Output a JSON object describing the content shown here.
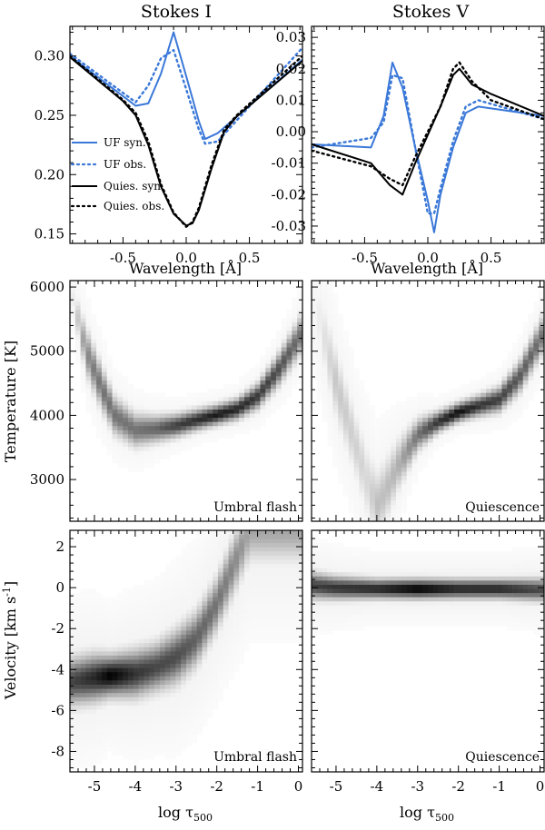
{
  "colors": {
    "uf": "#3a78d8",
    "quies": "#000000"
  },
  "chart_data": [
    {
      "id": "stokesI",
      "type": "line",
      "title": "Stokes I",
      "xlabel": "Wavelength [Å]",
      "ylabel": "",
      "xlim": [
        -0.92,
        0.92
      ],
      "ylim": [
        0.142,
        0.325
      ],
      "xticks": [
        -0.5,
        0.0,
        0.5
      ],
      "xtick_labels": [
        "-0.5",
        "0.0",
        "0.5"
      ],
      "yticks": [
        0.15,
        0.2,
        0.25,
        0.3
      ],
      "ytick_labels": [
        "0.15",
        "0.20",
        "0.25",
        "0.30"
      ],
      "series": [
        {
          "name": "UF syn.",
          "style": "solid",
          "color": "uf",
          "x": [
            -0.92,
            -0.4,
            -0.3,
            -0.2,
            -0.1,
            0.0,
            0.1,
            0.15,
            0.25,
            0.92
          ],
          "y": [
            0.3,
            0.258,
            0.26,
            0.285,
            0.32,
            0.283,
            0.245,
            0.23,
            0.235,
            0.297
          ]
        },
        {
          "name": "UF obs.",
          "style": "dotted",
          "color": "uf",
          "x": [
            -0.92,
            -0.4,
            -0.3,
            -0.2,
            -0.1,
            0.0,
            0.1,
            0.15,
            0.25,
            0.92
          ],
          "y": [
            0.302,
            0.261,
            0.275,
            0.298,
            0.305,
            0.272,
            0.238,
            0.226,
            0.228,
            0.307
          ]
        },
        {
          "name": "Quies. syn",
          "style": "solid",
          "color": "quies",
          "x": [
            -0.92,
            -0.5,
            -0.4,
            -0.3,
            -0.2,
            -0.1,
            0.0,
            0.05,
            0.1,
            0.2,
            0.3,
            0.4,
            0.92
          ],
          "y": [
            0.299,
            0.262,
            0.25,
            0.225,
            0.19,
            0.167,
            0.157,
            0.159,
            0.17,
            0.205,
            0.236,
            0.249,
            0.296
          ]
        },
        {
          "name": "Quies. obs.",
          "style": "dotted",
          "color": "quies",
          "x": [
            -0.92,
            -0.5,
            -0.4,
            -0.3,
            -0.2,
            -0.1,
            0.0,
            0.05,
            0.1,
            0.2,
            0.3,
            0.4,
            0.92
          ],
          "y": [
            0.3,
            0.263,
            0.252,
            0.228,
            0.192,
            0.168,
            0.156,
            0.16,
            0.172,
            0.208,
            0.238,
            0.25,
            0.3
          ]
        }
      ],
      "legend": {
        "position": "left-middle",
        "entries": [
          "UF syn.",
          "UF obs.",
          "Quies. syn",
          "Quies. obs."
        ]
      }
    },
    {
      "id": "stokesV",
      "type": "line",
      "title": "Stokes V",
      "xlabel": "Wavelength [Å]",
      "ylabel": "",
      "xlim": [
        -0.92,
        0.92
      ],
      "ylim": [
        -0.0355,
        0.0335
      ],
      "xticks": [
        -0.5,
        0.0,
        0.5
      ],
      "xtick_labels": [
        "-0.5",
        "0.0",
        "0.5"
      ],
      "yticks": [
        -0.03,
        -0.02,
        -0.01,
        0.0,
        0.01,
        0.02,
        0.03
      ],
      "ytick_labels": [
        "-0.03",
        "-0.02",
        "-0.01",
        "0.00",
        "0.01",
        "0.02",
        "0.03"
      ],
      "series": [
        {
          "name": "UF syn.",
          "style": "solid",
          "color": "uf",
          "x": [
            -0.92,
            -0.45,
            -0.35,
            -0.28,
            -0.2,
            -0.1,
            0.0,
            0.05,
            0.1,
            0.2,
            0.3,
            0.4,
            0.92
          ],
          "y": [
            -0.004,
            -0.005,
            0.005,
            0.022,
            0.014,
            -0.005,
            -0.022,
            -0.032,
            -0.02,
            -0.005,
            0.006,
            0.008,
            0.005
          ]
        },
        {
          "name": "UF obs.",
          "style": "dotted",
          "color": "uf",
          "x": [
            -0.92,
            -0.45,
            -0.35,
            -0.28,
            -0.2,
            -0.1,
            0.0,
            0.05,
            0.1,
            0.2,
            0.3,
            0.4,
            0.92
          ],
          "y": [
            -0.005,
            -0.002,
            0.003,
            0.018,
            0.017,
            -0.005,
            -0.026,
            -0.026,
            -0.018,
            -0.003,
            0.008,
            0.01,
            0.004
          ]
        },
        {
          "name": "Quies. syn",
          "style": "solid",
          "color": "quies",
          "x": [
            -0.92,
            -0.45,
            -0.3,
            -0.2,
            -0.1,
            0.0,
            0.1,
            0.2,
            0.25,
            0.35,
            0.5,
            0.92
          ],
          "y": [
            -0.004,
            -0.01,
            -0.017,
            -0.02,
            -0.01,
            -0.001,
            0.008,
            0.018,
            0.02,
            0.015,
            0.012,
            0.005
          ]
        },
        {
          "name": "Quies. obs.",
          "style": "dotted",
          "color": "quies",
          "x": [
            -0.92,
            -0.45,
            -0.3,
            -0.2,
            -0.1,
            0.0,
            0.1,
            0.2,
            0.25,
            0.35,
            0.5,
            0.92
          ],
          "y": [
            -0.006,
            -0.011,
            -0.015,
            -0.017,
            -0.008,
            0.0,
            0.008,
            0.02,
            0.022,
            0.016,
            0.01,
            0.004
          ]
        }
      ]
    },
    {
      "id": "tempUF",
      "type": "heatmap",
      "label": "Umbral flash",
      "xlabel": "",
      "ylabel": "Temperature [K]",
      "xlim": [
        -5.6,
        0.1
      ],
      "ylim": [
        2350,
        6100
      ],
      "xticks": [
        -5,
        -4,
        -3,
        -2,
        -1,
        0
      ],
      "yticks": [
        3000,
        4000,
        5000,
        6000
      ],
      "ytick_labels": [
        "3000",
        "4000",
        "5000",
        "6000"
      ],
      "band": {
        "x": [
          -5.6,
          -5.2,
          -5.0,
          -4.8,
          -4.5,
          -4.0,
          -3.5,
          -3.0,
          -2.5,
          -2.0,
          -1.5,
          -1.0,
          -0.5,
          0.1
        ],
        "y": [
          6000,
          5000,
          4700,
          4400,
          4000,
          3770,
          3790,
          3840,
          3930,
          4010,
          4100,
          4300,
          4700,
          5300
        ],
        "intensity": [
          0.0,
          0.45,
          0.52,
          0.55,
          0.55,
          0.55,
          0.6,
          0.75,
          0.82,
          0.9,
          0.85,
          0.78,
          0.7,
          0.55
        ],
        "width": [
          120,
          220,
          210,
          200,
          180,
          160,
          130,
          110,
          100,
          95,
          100,
          120,
          150,
          180
        ]
      }
    },
    {
      "id": "tempQ",
      "type": "heatmap",
      "label": "Quiescence",
      "xlabel": "",
      "ylabel": "",
      "xlim": [
        -5.6,
        0.1
      ],
      "ylim": [
        2350,
        6100
      ],
      "xticks": [
        -5,
        -4,
        -3,
        -2,
        -1,
        0
      ],
      "yticks": [
        3000,
        4000,
        5000,
        6000
      ],
      "band": {
        "x": [
          -5.6,
          -5.0,
          -4.5,
          -4.2,
          -4.0,
          -3.8,
          -3.5,
          -3.0,
          -2.5,
          -2.0,
          -1.5,
          -1.0,
          -0.5,
          0.1
        ],
        "y": [
          6000,
          4500,
          3500,
          2900,
          2600,
          2800,
          3200,
          3700,
          3900,
          4050,
          4150,
          4250,
          4600,
          5300
        ],
        "intensity": [
          0.0,
          0.22,
          0.18,
          0.15,
          0.25,
          0.25,
          0.3,
          0.55,
          0.8,
          0.95,
          0.8,
          0.75,
          0.65,
          0.55
        ],
        "width": [
          300,
          320,
          300,
          330,
          320,
          300,
          240,
          150,
          100,
          90,
          100,
          120,
          150,
          180
        ]
      }
    },
    {
      "id": "velUF",
      "type": "heatmap",
      "label": "Umbral flash",
      "xlabel": "log τ500",
      "ylabel": "Velocity [km s-1]",
      "xlim": [
        -5.6,
        0.1
      ],
      "ylim": [
        -9.0,
        2.8
      ],
      "xticks": [
        -5,
        -4,
        -3,
        -2,
        -1,
        0
      ],
      "xtick_labels": [
        "-5",
        "-4",
        "-3",
        "-2",
        "-1",
        "0"
      ],
      "yticks": [
        -8,
        -6,
        -4,
        -2,
        0,
        2
      ],
      "ytick_labels": [
        "-8",
        "-6",
        "-4",
        "-2",
        "0",
        "2"
      ],
      "band": {
        "x": [
          -5.6,
          -5.0,
          -4.6,
          -4.0,
          -3.5,
          -3.0,
          -2.5,
          -2.0,
          -1.5,
          -1.2
        ],
        "y": [
          -4.6,
          -4.4,
          -4.3,
          -4.2,
          -3.9,
          -3.4,
          -2.5,
          -0.8,
          1.5,
          2.8
        ],
        "intensity": [
          0.72,
          0.85,
          1.0,
          0.8,
          0.72,
          0.7,
          0.62,
          0.55,
          0.45,
          0.35
        ],
        "width": [
          0.7,
          0.7,
          0.6,
          0.7,
          0.7,
          0.8,
          0.8,
          0.8,
          0.9,
          0.9
        ]
      }
    },
    {
      "id": "velQ",
      "type": "heatmap",
      "label": "Quiescence",
      "xlabel": "log τ500",
      "ylabel": "",
      "xlim": [
        -5.6,
        0.1
      ],
      "ylim": [
        -9.0,
        2.8
      ],
      "xticks": [
        -5,
        -4,
        -3,
        -2,
        -1,
        0
      ],
      "xtick_labels": [
        "-5",
        "-4",
        "-3",
        "-2",
        "-1",
        "0"
      ],
      "yticks": [
        -8,
        -6,
        -4,
        -2,
        0,
        2
      ],
      "band": {
        "x": [
          -5.6,
          -5.0,
          -4.0,
          -3.0,
          -2.0,
          -1.0,
          0.1
        ],
        "y": [
          0.1,
          0.0,
          -0.05,
          -0.05,
          -0.05,
          -0.05,
          -0.1
        ],
        "intensity": [
          0.75,
          0.8,
          0.85,
          1.0,
          0.85,
          0.85,
          0.7
        ],
        "width": [
          0.4,
          0.35,
          0.3,
          0.3,
          0.3,
          0.3,
          0.35
        ]
      }
    }
  ]
}
